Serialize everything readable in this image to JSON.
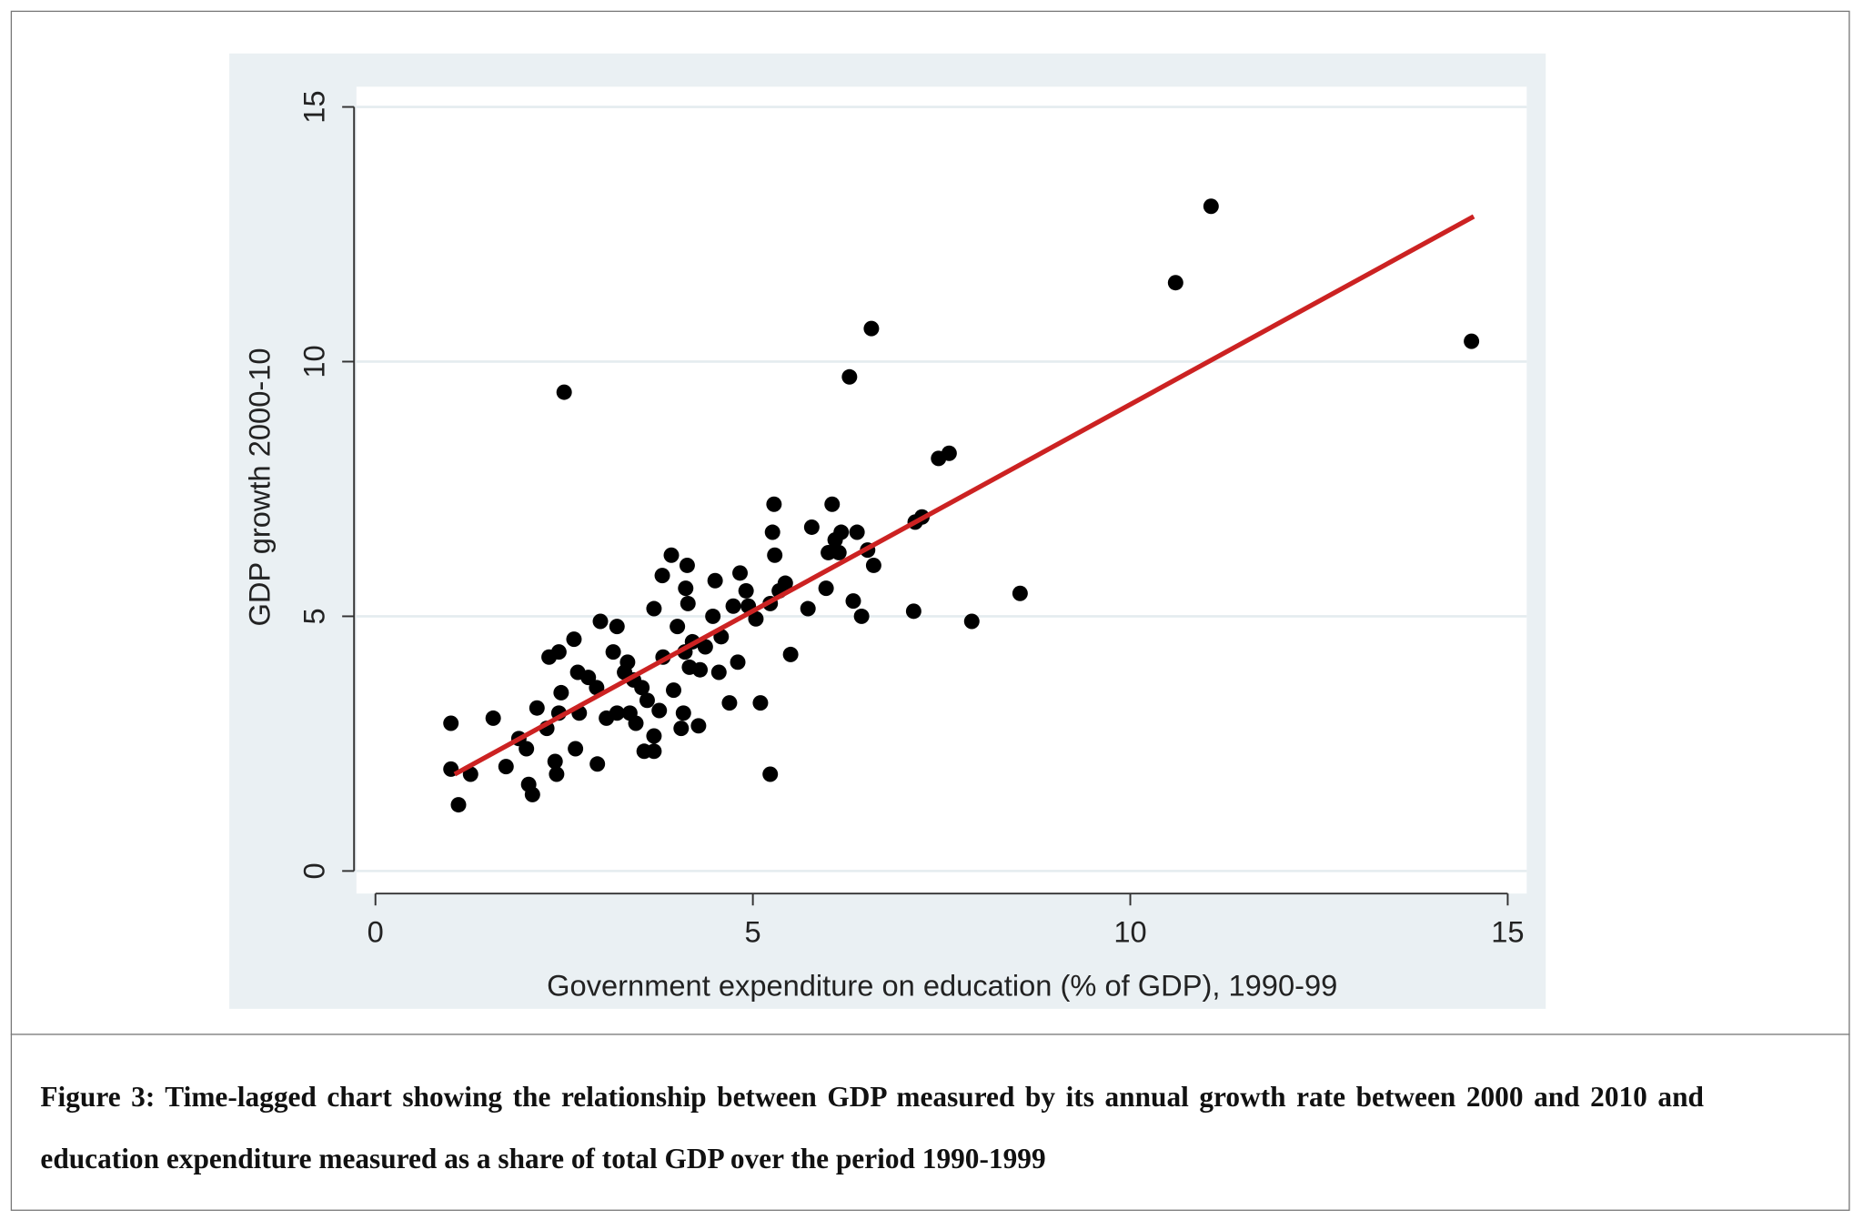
{
  "chart_data": {
    "type": "scatter",
    "title": "",
    "xlabel": "Government expenditure on education (% of GDP), 1990-99",
    "ylabel": "GDP growth 2000-10",
    "xlim": [
      0,
      15
    ],
    "ylim": [
      0,
      15
    ],
    "xticks": [
      0,
      5,
      10,
      15
    ],
    "yticks": [
      0,
      5,
      10,
      15
    ],
    "xtick_labels": [
      "0",
      "5",
      "10",
      "15"
    ],
    "ytick_labels": [
      "0",
      "5",
      "10",
      "15"
    ],
    "grid": "horizontal",
    "colors": {
      "points": "#000000",
      "fit_line": "#cc2222",
      "panel": "#eaf0f3",
      "plot": "#ffffff"
    },
    "fit_line": {
      "x": [
        1.05,
        14.55
      ],
      "y": [
        1.9,
        12.85
      ]
    },
    "points": [
      [
        1.0,
        2.9
      ],
      [
        1.0,
        2.0
      ],
      [
        1.1,
        1.3
      ],
      [
        1.26,
        1.9
      ],
      [
        1.56,
        3.0
      ],
      [
        1.73,
        2.05
      ],
      [
        1.9,
        2.6
      ],
      [
        2.0,
        2.4
      ],
      [
        2.03,
        1.7
      ],
      [
        2.08,
        1.5
      ],
      [
        2.14,
        3.2
      ],
      [
        2.27,
        2.8
      ],
      [
        2.3,
        4.2
      ],
      [
        2.38,
        2.15
      ],
      [
        2.4,
        1.9
      ],
      [
        2.43,
        4.3
      ],
      [
        2.46,
        3.5
      ],
      [
        2.43,
        3.1
      ],
      [
        2.5,
        9.4
      ],
      [
        2.63,
        4.55
      ],
      [
        2.65,
        2.4
      ],
      [
        2.68,
        3.9
      ],
      [
        2.7,
        3.1
      ],
      [
        2.82,
        3.8
      ],
      [
        2.93,
        3.6
      ],
      [
        2.94,
        2.1
      ],
      [
        2.98,
        4.9
      ],
      [
        3.06,
        3.0
      ],
      [
        3.15,
        4.3
      ],
      [
        3.2,
        4.8
      ],
      [
        3.2,
        3.1
      ],
      [
        3.3,
        3.9
      ],
      [
        3.34,
        4.1
      ],
      [
        3.37,
        3.1
      ],
      [
        3.42,
        3.75
      ],
      [
        3.45,
        2.9
      ],
      [
        3.53,
        3.6
      ],
      [
        3.56,
        2.35
      ],
      [
        3.6,
        3.35
      ],
      [
        3.69,
        2.35
      ],
      [
        3.69,
        2.65
      ],
      [
        3.69,
        5.15
      ],
      [
        3.76,
        3.15
      ],
      [
        3.8,
        5.8
      ],
      [
        3.81,
        4.2
      ],
      [
        3.92,
        6.2
      ],
      [
        3.95,
        3.55
      ],
      [
        4.0,
        4.8
      ],
      [
        4.05,
        2.8
      ],
      [
        4.08,
        3.1
      ],
      [
        4.1,
        4.3
      ],
      [
        4.13,
        6.0
      ],
      [
        4.11,
        5.55
      ],
      [
        4.14,
        5.25
      ],
      [
        4.16,
        4.0
      ],
      [
        4.2,
        4.5
      ],
      [
        4.28,
        2.85
      ],
      [
        4.3,
        3.95
      ],
      [
        4.37,
        4.4
      ],
      [
        4.47,
        5.0
      ],
      [
        4.5,
        5.7
      ],
      [
        4.55,
        3.9
      ],
      [
        4.58,
        4.6
      ],
      [
        4.69,
        3.3
      ],
      [
        4.74,
        5.2
      ],
      [
        4.8,
        4.1
      ],
      [
        4.83,
        5.85
      ],
      [
        4.91,
        5.5
      ],
      [
        4.94,
        5.2
      ],
      [
        5.04,
        4.95
      ],
      [
        5.1,
        3.3
      ],
      [
        5.23,
        1.9
      ],
      [
        5.23,
        5.25
      ],
      [
        5.26,
        6.65
      ],
      [
        5.28,
        7.2
      ],
      [
        5.29,
        6.2
      ],
      [
        5.35,
        5.5
      ],
      [
        5.43,
        5.65
      ],
      [
        5.5,
        4.25
      ],
      [
        5.73,
        5.15
      ],
      [
        5.78,
        6.75
      ],
      [
        5.97,
        5.55
      ],
      [
        6.0,
        6.25
      ],
      [
        6.05,
        7.2
      ],
      [
        6.09,
        6.5
      ],
      [
        6.14,
        6.25
      ],
      [
        6.17,
        6.65
      ],
      [
        6.28,
        9.7
      ],
      [
        6.33,
        5.3
      ],
      [
        6.38,
        6.65
      ],
      [
        6.44,
        5.0
      ],
      [
        6.52,
        6.3
      ],
      [
        6.57,
        10.65
      ],
      [
        6.6,
        6.0
      ],
      [
        7.13,
        5.1
      ],
      [
        7.15,
        6.85
      ],
      [
        7.24,
        6.95
      ],
      [
        7.46,
        8.1
      ],
      [
        7.6,
        8.2
      ],
      [
        7.9,
        4.9
      ],
      [
        8.54,
        5.45
      ],
      [
        10.6,
        11.55
      ],
      [
        11.07,
        13.05
      ],
      [
        14.52,
        10.4
      ]
    ]
  },
  "caption": "Figure 3: Time-lagged chart showing the relationship between GDP measured by its annual growth rate between 2000 and 2010 and education expenditure measured as a share of total GDP over the period 1990-1999"
}
